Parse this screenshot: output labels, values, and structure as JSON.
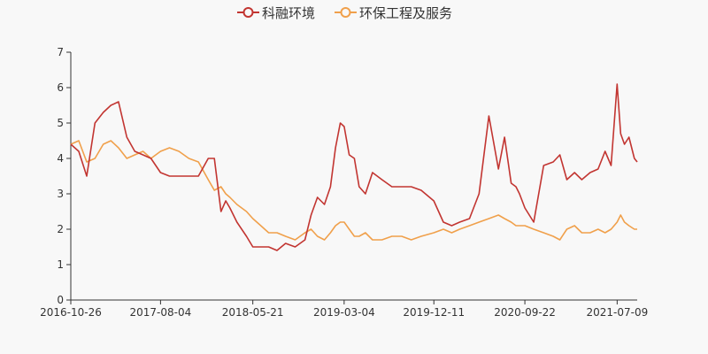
{
  "chart_data": {
    "type": "line",
    "x": [
      "2016-10-26",
      "2016-11-20",
      "2016-12-15",
      "2017-01-10",
      "2017-02-05",
      "2017-03-01",
      "2017-03-25",
      "2017-04-20",
      "2017-05-15",
      "2017-06-10",
      "2017-07-05",
      "2017-08-04",
      "2017-09-01",
      "2017-10-01",
      "2017-11-01",
      "2017-12-01",
      "2018-01-01",
      "2018-01-20",
      "2018-02-10",
      "2018-02-25",
      "2018-03-10",
      "2018-04-01",
      "2018-05-01",
      "2018-05-21",
      "2018-06-15",
      "2018-07-10",
      "2018-08-05",
      "2018-09-01",
      "2018-10-01",
      "2018-11-01",
      "2018-11-20",
      "2018-12-10",
      "2019-01-01",
      "2019-01-20",
      "2019-02-05",
      "2019-02-20",
      "2019-03-04",
      "2019-03-20",
      "2019-04-05",
      "2019-04-20",
      "2019-05-10",
      "2019-06-01",
      "2019-07-01",
      "2019-08-01",
      "2019-09-01",
      "2019-10-01",
      "2019-11-01",
      "2019-12-11",
      "2020-01-10",
      "2020-02-05",
      "2020-03-01",
      "2020-04-01",
      "2020-05-01",
      "2020-06-01",
      "2020-07-01",
      "2020-07-20",
      "2020-08-10",
      "2020-08-25",
      "2020-09-05",
      "2020-09-22",
      "2020-10-20",
      "2020-11-20",
      "2020-12-20",
      "2021-01-10",
      "2021-02-01",
      "2021-02-25",
      "2021-03-20",
      "2021-04-15",
      "2021-05-10",
      "2021-06-01",
      "2021-06-20",
      "2021-07-09",
      "2021-07-20",
      "2021-08-01",
      "2021-08-15",
      "2021-09-01",
      "2021-09-10"
    ],
    "x_ticks": [
      "2016-10-26",
      "2017-08-04",
      "2018-05-21",
      "2019-03-04",
      "2019-12-11",
      "2020-09-22",
      "2021-07-09"
    ],
    "series": [
      {
        "name": "科融环境",
        "color": "#c23531",
        "values": [
          4.4,
          4.2,
          3.5,
          5.0,
          5.3,
          5.5,
          5.6,
          4.6,
          4.2,
          4.1,
          4.0,
          3.6,
          3.5,
          3.5,
          3.5,
          3.5,
          4.0,
          4.0,
          2.5,
          2.8,
          2.6,
          2.2,
          1.8,
          1.5,
          1.5,
          1.5,
          1.4,
          1.6,
          1.5,
          1.7,
          2.4,
          2.9,
          2.7,
          3.2,
          4.3,
          5.0,
          4.9,
          4.1,
          4.0,
          3.2,
          3.0,
          3.6,
          3.4,
          3.2,
          3.2,
          3.2,
          3.1,
          2.8,
          2.2,
          2.1,
          2.2,
          2.3,
          3.0,
          5.2,
          3.7,
          4.6,
          3.3,
          3.2,
          3.0,
          2.6,
          2.2,
          3.8,
          3.9,
          4.1,
          3.4,
          3.6,
          3.4,
          3.6,
          3.7,
          4.2,
          3.8,
          6.1,
          4.7,
          4.4,
          4.6,
          4.0,
          3.9
        ]
      },
      {
        "name": "环保工程及服务",
        "color": "#f0a04b",
        "values": [
          4.4,
          4.5,
          3.9,
          4.0,
          4.4,
          4.5,
          4.3,
          4.0,
          4.1,
          4.2,
          4.0,
          4.2,
          4.3,
          4.2,
          4.0,
          3.9,
          3.4,
          3.1,
          3.2,
          3.0,
          2.9,
          2.7,
          2.5,
          2.3,
          2.1,
          1.9,
          1.9,
          1.8,
          1.7,
          1.9,
          2.0,
          1.8,
          1.7,
          1.9,
          2.1,
          2.2,
          2.2,
          2.0,
          1.8,
          1.8,
          1.9,
          1.7,
          1.7,
          1.8,
          1.8,
          1.7,
          1.8,
          1.9,
          2.0,
          1.9,
          2.0,
          2.1,
          2.2,
          2.3,
          2.4,
          2.3,
          2.2,
          2.1,
          2.1,
          2.1,
          2.0,
          1.9,
          1.8,
          1.7,
          2.0,
          2.1,
          1.9,
          1.9,
          2.0,
          1.9,
          2.0,
          2.2,
          2.4,
          2.2,
          2.1,
          2.0,
          2.0
        ]
      }
    ],
    "ylim": [
      0,
      7
    ],
    "y_ticks": [
      0,
      1,
      2,
      3,
      4,
      5,
      6,
      7
    ],
    "grid": false,
    "legend": "top-center",
    "title": "",
    "xlabel": "",
    "ylabel": ""
  }
}
